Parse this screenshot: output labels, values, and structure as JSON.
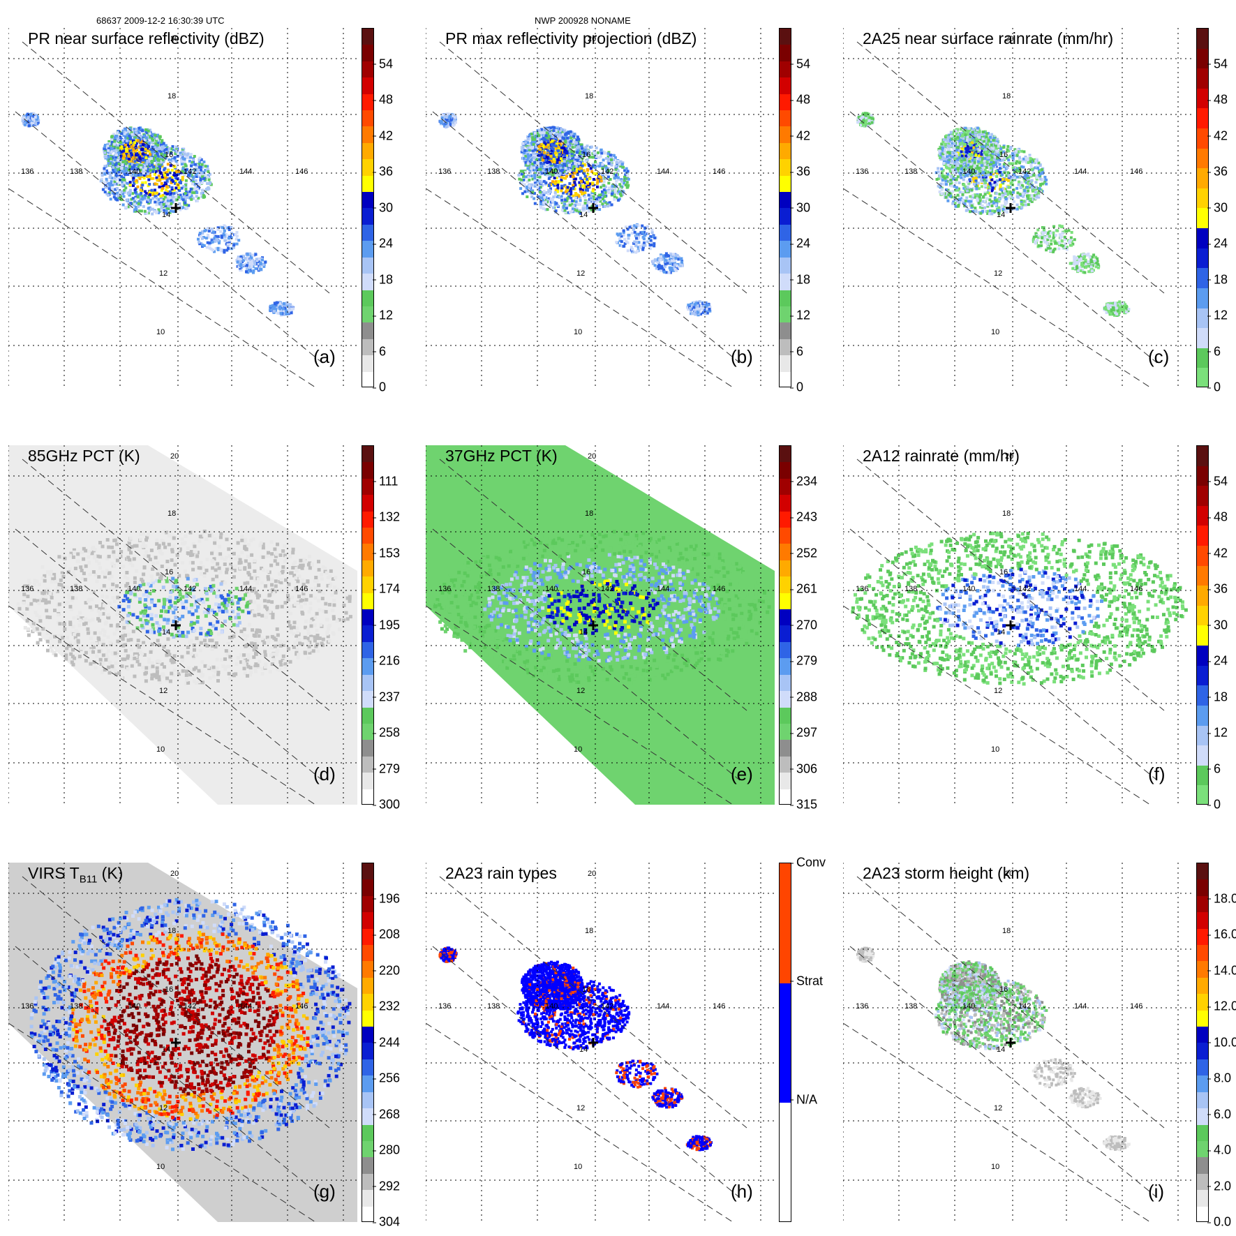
{
  "header": {
    "left": "68637 2009-12-2 16:30:39 UTC",
    "center": "NWP 200928 NONAME"
  },
  "map_labels": {
    "lon": [
      "136",
      "138",
      "140",
      "142",
      "144",
      "146"
    ],
    "lat": [
      "20",
      "18",
      "16",
      "14",
      "12",
      "10"
    ]
  },
  "panels": [
    {
      "id": "a",
      "title": "PR near surface reflectivity (dBZ)",
      "label": "(a)",
      "colorbar": [
        "0",
        "6",
        "12",
        "18",
        "24",
        "30",
        "36",
        "42",
        "48",
        "54"
      ],
      "scheme": "refl",
      "field": "pr_swath"
    },
    {
      "id": "b",
      "title": "PR max reflectivity projection (dBZ)",
      "label": "(b)",
      "colorbar": [
        "0",
        "6",
        "12",
        "18",
        "24",
        "30",
        "36",
        "42",
        "48",
        "54"
      ],
      "scheme": "refl",
      "field": "pr_swath"
    },
    {
      "id": "c",
      "title": "2A25 near surface rainrate (mm/hr)",
      "label": "(c)",
      "colorbar": [
        "0",
        "6",
        "12",
        "18",
        "24",
        "30",
        "36",
        "42",
        "48",
        "54"
      ],
      "scheme": "rain",
      "field": "pr_swath"
    },
    {
      "id": "d",
      "title": "85GHz PCT (K)",
      "label": "(d)",
      "colorbar": [
        "300",
        "279",
        "258",
        "237",
        "216",
        "195",
        "174",
        "153",
        "132",
        "111"
      ],
      "scheme": "refl",
      "field": "tmi_gray"
    },
    {
      "id": "e",
      "title": "37GHz PCT (K)",
      "label": "(e)",
      "colorbar": [
        "315",
        "306",
        "297",
        "288",
        "279",
        "270",
        "261",
        "252",
        "243",
        "234"
      ],
      "scheme": "refl",
      "field": "tmi_green"
    },
    {
      "id": "f",
      "title": "2A12 rainrate (mm/hr)",
      "label": "(f)",
      "colorbar": [
        "0",
        "6",
        "12",
        "18",
        "24",
        "30",
        "36",
        "42",
        "48",
        "54"
      ],
      "scheme": "rain",
      "field": "tmi_rain"
    },
    {
      "id": "g",
      "title": "VIRS T",
      "title_sub": "B11",
      "title_suffix": " (K)",
      "label": "(g)",
      "colorbar": [
        "304",
        "292",
        "280",
        "268",
        "256",
        "244",
        "232",
        "220",
        "208",
        "196"
      ],
      "scheme": "refl",
      "field": "virs"
    },
    {
      "id": "h",
      "title": "2A23 rain types",
      "label": "(h)",
      "colorbar": [
        "N/A",
        "Strat",
        "Conv"
      ],
      "scheme": "types",
      "field": "pr_types"
    },
    {
      "id": "i",
      "title": "2A23 storm height (km)",
      "label": "(i)",
      "colorbar": [
        "0.0",
        "2.0",
        "4.0",
        "6.0",
        "8.0",
        "10.0",
        "12.0",
        "14.0",
        "16.0",
        "18.0"
      ],
      "scheme": "refl",
      "field": "pr_height"
    }
  ],
  "colors": {
    "refl": [
      "#ffffff",
      "#e8e8e8",
      "#bdbdbd",
      "#8e8e8e",
      "#6fd36f",
      "#5cc95c",
      "#d0dcfa",
      "#a8c4f5",
      "#5c9cf0",
      "#2f64e6",
      "#0a1ed2",
      "#0000c0",
      "#ffff00",
      "#ffd200",
      "#ffaa00",
      "#ff7a00",
      "#ff4a00",
      "#ff1a00",
      "#d20000",
      "#a00000",
      "#7a0000",
      "#5a1010"
    ],
    "rain": [
      "#7be07b",
      "#5cc95c",
      "#d0dcfa",
      "#a8c4f5",
      "#5c9cf0",
      "#2f64e6",
      "#0a1ed2",
      "#0000c0",
      "#ffff00",
      "#ffd200",
      "#ffaa00",
      "#ff7a00",
      "#ff4a00",
      "#ff1a00",
      "#d20000",
      "#a00000",
      "#7a0000",
      "#5a1010"
    ],
    "types": [
      "#ffffff",
      "#ffffff",
      "#0000ff",
      "#0000ff",
      "#ff4500",
      "#ff4500"
    ]
  }
}
